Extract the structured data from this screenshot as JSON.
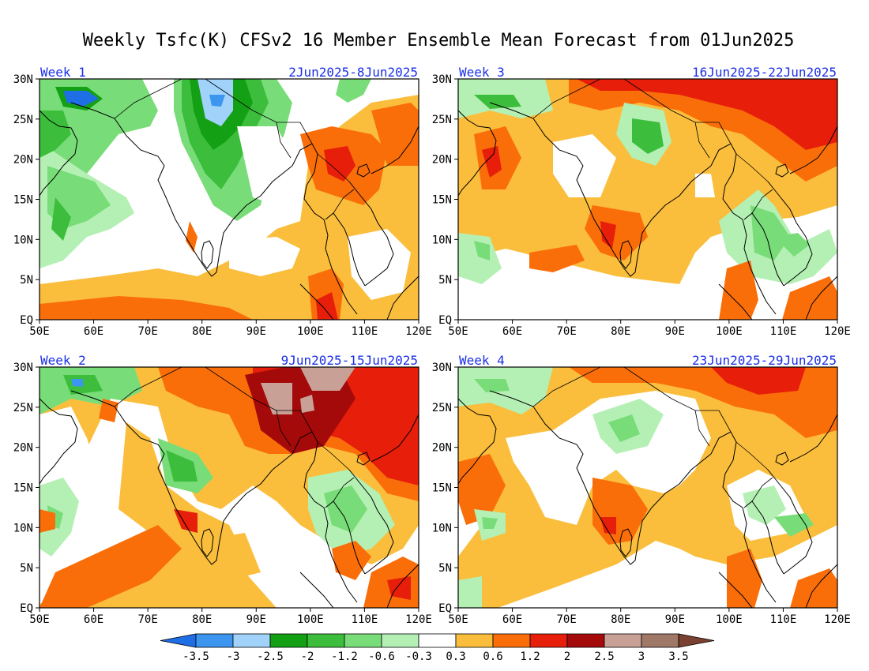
{
  "figure": {
    "title": "Weekly Tsfc(K) CFSv2 16 Member Ensemble Mean Forecast from 01Jun2025"
  },
  "axes": {
    "lon_labels": [
      "50E",
      "60E",
      "70E",
      "80E",
      "90E",
      "100E",
      "110E",
      "120E"
    ],
    "lat_labels": [
      "EQ",
      "5N",
      "10N",
      "15N",
      "20N",
      "25N",
      "30N"
    ]
  },
  "panels": [
    {
      "id": "week1",
      "label": "Week 1",
      "dates": "2Jun2025-8Jun2025"
    },
    {
      "id": "week3",
      "label": "Week 3",
      "dates": "16Jun2025-22Jun2025"
    },
    {
      "id": "week2",
      "label": "Week 2",
      "dates": "9Jun2025-15Jun2025"
    },
    {
      "id": "week4",
      "label": "Week 4",
      "dates": "23Jun2025-29Jun2025"
    }
  ],
  "colorbar": {
    "labels": [
      "-3.5",
      "-3",
      "-2.5",
      "-2",
      "-1.2",
      "-0.6",
      "-0.3",
      "0.3",
      "0.6",
      "1.2",
      "2",
      "2.5",
      "3",
      "3.5"
    ],
    "colors": [
      "#1e6ee6",
      "#3c96f0",
      "#a0d2fa",
      "#14a014",
      "#3cbe3c",
      "#78dc78",
      "#b4f0b4",
      "#ffffff",
      "#fabe3c",
      "#fa6e0a",
      "#e61e0a",
      "#a50a0a",
      "#c8a096",
      "#a07868",
      "#7a4030"
    ]
  },
  "palette": {
    "cool3": "#3c96f0",
    "cool2": "#a0d2fa",
    "green3": "#14a014",
    "green2": "#3cbe3c",
    "green1": "#78dc78",
    "green0": "#b4f0b4",
    "warm0": "#fabe3c",
    "warm1": "#fa6e0a",
    "warm2": "#e61e0a",
    "warm3": "#a50a0a",
    "warm4": "#c8a096",
    "warm5": "#a07868",
    "text_accent": "#1a2ee6"
  }
}
